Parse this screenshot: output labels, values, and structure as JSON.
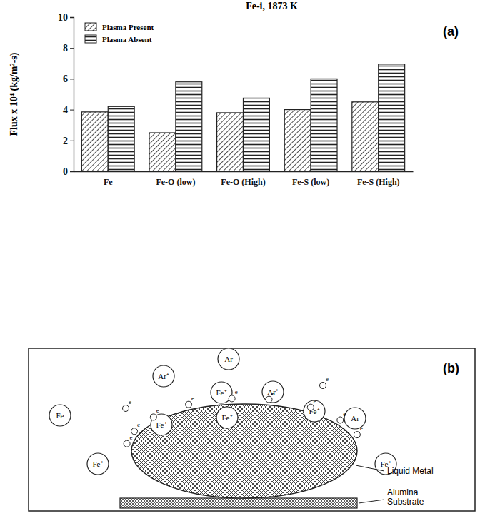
{
  "chart_data": {
    "type": "bar",
    "title": "Fe-i, 1873 K",
    "y_label": "Flux x 10⁴ (kg/m²-s)",
    "categories": [
      "Fe",
      "Fe-O (low)",
      "Fe-O (High)",
      "Fe-S (low)",
      "Fe-S (High)"
    ],
    "series": [
      {
        "name": "Plasma Present",
        "color": "#222222",
        "values": [
          3.85,
          2.5,
          3.8,
          4.0,
          4.5
        ]
      },
      {
        "name": "Plasma Absent",
        "color": "#222222",
        "values": [
          4.2,
          5.8,
          4.75,
          6.0,
          6.95
        ]
      }
    ],
    "ylim": [
      0,
      10
    ],
    "yticks": [
      0,
      2,
      4,
      6,
      8,
      10
    ],
    "grid": false,
    "legend": "upper left"
  },
  "panel_labels": [
    "(a)",
    "(b)"
  ],
  "diagram": {
    "atoms": [
      "Ar⁺",
      "Ar",
      "Fe⁺",
      "Ar⁺",
      "Fe",
      "Fe⁺",
      "Fe⁺",
      "Fe⁺",
      "Ar",
      "Fe⁺",
      "Fe⁺"
    ],
    "electrons": [
      "e",
      "e",
      "e",
      "e",
      "e",
      "e",
      "e",
      "e",
      "e",
      "e",
      "e"
    ],
    "liquid_label": "Liquid Metal",
    "substrate_label": "Alumina Substrate"
  }
}
